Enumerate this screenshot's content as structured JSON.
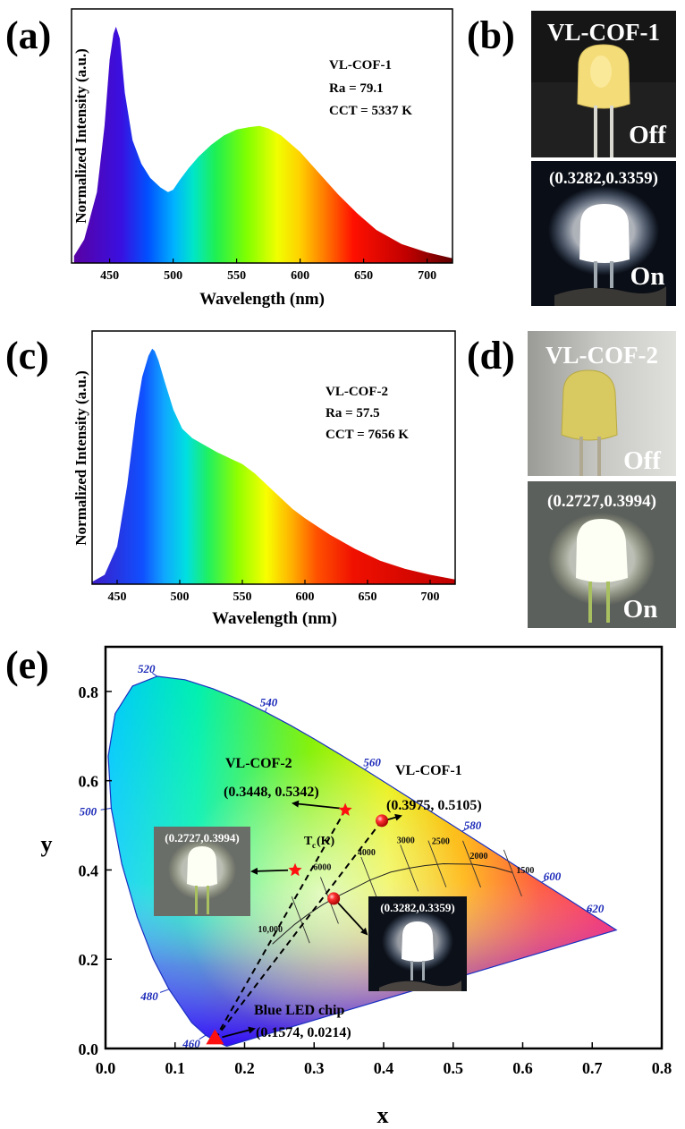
{
  "panels": {
    "a": "(a)",
    "b": "(b)",
    "c": "(c)",
    "d": "(d)",
    "e": "(e)"
  },
  "photos": {
    "b_title": "VL-COF-1",
    "b_coord": "(0.3282,0.3359)",
    "d_title": "VL-COF-2",
    "d_coord": "(0.2727,0.3994)",
    "off": "Off",
    "on": "On"
  },
  "chart_data": [
    {
      "id": "a",
      "type": "area",
      "xlabel": "Wavelength (nm)",
      "ylabel": "Normalized Intensity (a.u.)",
      "xlim": [
        420,
        720
      ],
      "xticks": [
        450,
        500,
        550,
        600,
        650,
        700
      ],
      "fill": "spectral-rainbow",
      "annotations": [
        "VL-COF-1",
        "Ra = 79.1",
        "CCT = 5337 K"
      ],
      "x": [
        422,
        430,
        440,
        446,
        450,
        453,
        455,
        458,
        462,
        468,
        475,
        482,
        490,
        496,
        500,
        505,
        512,
        520,
        530,
        540,
        550,
        560,
        568,
        575,
        585,
        600,
        615,
        630,
        645,
        660,
        680,
        700,
        720
      ],
      "y": [
        0.03,
        0.1,
        0.3,
        0.58,
        0.86,
        0.97,
        1.0,
        0.95,
        0.72,
        0.52,
        0.42,
        0.36,
        0.32,
        0.3,
        0.31,
        0.35,
        0.4,
        0.45,
        0.5,
        0.54,
        0.565,
        0.575,
        0.58,
        0.57,
        0.54,
        0.47,
        0.38,
        0.29,
        0.21,
        0.14,
        0.08,
        0.045,
        0.02
      ]
    },
    {
      "id": "c",
      "type": "area",
      "xlabel": "Wavelength (nm)",
      "ylabel": "Normalized Intensity (a.u.)",
      "xlim": [
        430,
        720
      ],
      "xticks": [
        450,
        500,
        550,
        600,
        650,
        700
      ],
      "fill": "spectral-rainbow",
      "annotations": [
        "VL-COF-2",
        "Ra = 57.5",
        "CCT = 7656 K"
      ],
      "x": [
        430,
        440,
        450,
        458,
        465,
        470,
        475,
        478,
        480,
        483,
        488,
        495,
        502,
        510,
        520,
        530,
        540,
        550,
        560,
        570,
        580,
        590,
        600,
        620,
        640,
        660,
        680,
        700,
        720
      ],
      "y": [
        0.01,
        0.04,
        0.16,
        0.42,
        0.72,
        0.88,
        0.97,
        1.0,
        0.99,
        0.95,
        0.86,
        0.74,
        0.66,
        0.62,
        0.59,
        0.56,
        0.535,
        0.51,
        0.47,
        0.42,
        0.37,
        0.32,
        0.28,
        0.21,
        0.15,
        0.1,
        0.065,
        0.04,
        0.02
      ]
    },
    {
      "id": "e",
      "type": "scatter",
      "xlabel": "x",
      "ylabel": "y",
      "xlim": [
        0.0,
        0.8
      ],
      "ylim": [
        0.0,
        0.9
      ],
      "xticks": [
        "0.0",
        "0.1",
        "0.2",
        "0.3",
        "0.4",
        "0.5",
        "0.6",
        "0.7",
        "0.8"
      ],
      "yticks": [
        "0.0",
        "0.2",
        "0.4",
        "0.6",
        "0.8"
      ],
      "locus": [
        [
          0.1741,
          0.005
        ],
        [
          0.1566,
          0.0177
        ],
        [
          0.144,
          0.0297
        ],
        [
          0.1241,
          0.0578
        ],
        [
          0.0913,
          0.1327
        ],
        [
          0.0687,
          0.2007
        ],
        [
          0.0454,
          0.295
        ],
        [
          0.0235,
          0.4127
        ],
        [
          0.0082,
          0.5384
        ],
        [
          0.0039,
          0.6548
        ],
        [
          0.0139,
          0.7502
        ],
        [
          0.0389,
          0.812
        ],
        [
          0.0743,
          0.8338
        ],
        [
          0.1142,
          0.8262
        ],
        [
          0.1547,
          0.8059
        ],
        [
          0.1929,
          0.7816
        ],
        [
          0.2296,
          0.7543
        ],
        [
          0.2658,
          0.7243
        ],
        [
          0.3016,
          0.6923
        ],
        [
          0.3373,
          0.6589
        ],
        [
          0.3731,
          0.6245
        ],
        [
          0.4087,
          0.5896
        ],
        [
          0.4441,
          0.5547
        ],
        [
          0.4788,
          0.5202
        ],
        [
          0.5125,
          0.4866
        ],
        [
          0.5448,
          0.4544
        ],
        [
          0.5752,
          0.4242
        ],
        [
          0.6029,
          0.3965
        ],
        [
          0.627,
          0.3725
        ],
        [
          0.6482,
          0.3514
        ],
        [
          0.6658,
          0.334
        ],
        [
          0.6801,
          0.3197
        ],
        [
          0.6915,
          0.3083
        ],
        [
          0.7006,
          0.2993
        ],
        [
          0.7079,
          0.292
        ],
        [
          0.7347,
          0.2653
        ]
      ],
      "wavelength_labels": [
        {
          "text": "460",
          "x": 0.144,
          "y": 0.0297
        },
        {
          "text": "480",
          "x": 0.0913,
          "y": 0.1327
        },
        {
          "text": "500",
          "x": 0.0082,
          "y": 0.5384
        },
        {
          "text": "520",
          "x": 0.0743,
          "y": 0.8338
        },
        {
          "text": "540",
          "x": 0.2296,
          "y": 0.7543
        },
        {
          "text": "560",
          "x": 0.3731,
          "y": 0.6245
        },
        {
          "text": "580",
          "x": 0.5125,
          "y": 0.4866
        },
        {
          "text": "600",
          "x": 0.627,
          "y": 0.3725
        },
        {
          "text": "620",
          "x": 0.6915,
          "y": 0.3083
        }
      ],
      "planckian": [
        [
          0.24,
          0.234
        ],
        [
          0.253,
          0.252
        ],
        [
          0.272,
          0.278
        ],
        [
          0.29,
          0.299
        ],
        [
          0.313,
          0.323
        ],
        [
          0.335,
          0.342
        ],
        [
          0.361,
          0.362
        ],
        [
          0.38,
          0.377
        ],
        [
          0.41,
          0.395
        ],
        [
          0.437,
          0.404
        ],
        [
          0.46,
          0.41
        ],
        [
          0.486,
          0.414
        ],
        [
          0.527,
          0.413
        ],
        [
          0.559,
          0.406
        ],
        [
          0.585,
          0.394
        ]
      ],
      "isotherms": [
        {
          "label": "10,000",
          "x": 0.2807,
          "y": 0.2883
        },
        {
          "label": "6000",
          "x": 0.3221,
          "y": 0.3318
        },
        {
          "label": "4000",
          "x": 0.3805,
          "y": 0.3768
        },
        {
          "label": "3000",
          "x": 0.4369,
          "y": 0.4041
        },
        {
          "label": "2500",
          "x": 0.477,
          "y": 0.4137
        },
        {
          "label": "2000",
          "x": 0.5267,
          "y": 0.4133
        },
        {
          "label": "1500",
          "x": 0.5857,
          "y": 0.3931
        }
      ],
      "tc_label": "T",
      "tc_sub": "c",
      "tc_unit": "(K)",
      "points": [
        {
          "name": "Blue LED chip",
          "x": 0.1574,
          "y": 0.0214,
          "marker": "triangle",
          "label": "(0.1574, 0.0214)"
        },
        {
          "name": "VL-COF-1 excitation",
          "x": 0.3975,
          "y": 0.5105,
          "marker": "sphere",
          "label": "(0.3975, 0.5105)"
        },
        {
          "name": "VL-COF-1 LED",
          "x": 0.3282,
          "y": 0.3359,
          "marker": "sphere",
          "label": "(0.3282,0.3359)"
        },
        {
          "name": "VL-COF-2 excitation",
          "x": 0.3448,
          "y": 0.5342,
          "marker": "star",
          "label": "(0.3448, 0.5342)"
        },
        {
          "name": "VL-COF-2 LED",
          "x": 0.2727,
          "y": 0.3994,
          "marker": "star",
          "label": "(0.2727,0.3994)"
        }
      ],
      "series_labels": {
        "cof1": "VL-COF-1",
        "cof2": "VL-COF-2",
        "chip": "Blue LED chip"
      }
    }
  ]
}
